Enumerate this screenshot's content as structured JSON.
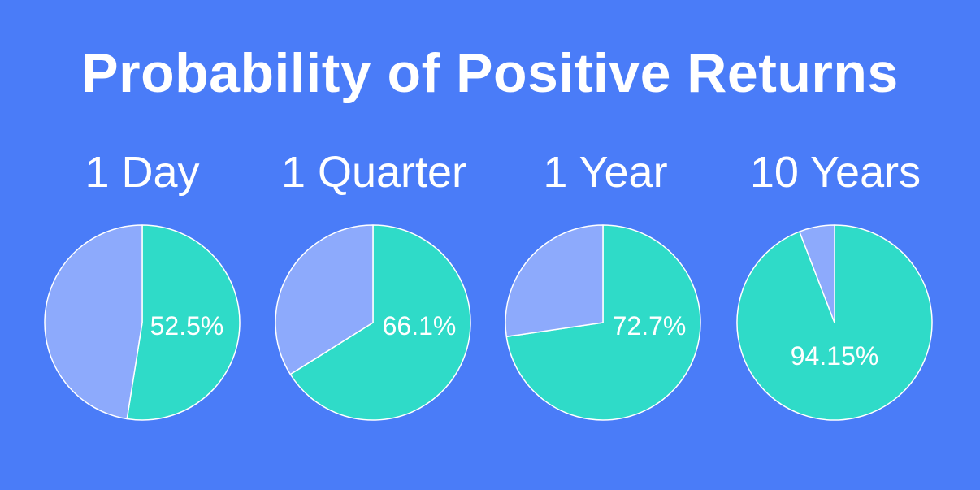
{
  "title": "Probability of Positive Returns",
  "colors": {
    "background": "#4a7cf8",
    "positive": "#2fdbc8",
    "negative": "#8daafc",
    "stroke": "#ffffff",
    "text": "#ffffff"
  },
  "chart_data": [
    {
      "type": "pie",
      "title": "1 Day",
      "values": [
        52.5,
        47.5
      ],
      "labels": [
        "52.5%",
        ""
      ]
    },
    {
      "type": "pie",
      "title": "1 Quarter",
      "values": [
        66.1,
        33.9
      ],
      "labels": [
        "66.1%",
        ""
      ]
    },
    {
      "type": "pie",
      "title": "1 Year",
      "values": [
        72.7,
        27.3
      ],
      "labels": [
        "72.7%",
        ""
      ]
    },
    {
      "type": "pie",
      "title": "10 Years",
      "values": [
        94.15,
        5.85
      ],
      "labels": [
        "94.15%",
        ""
      ]
    }
  ]
}
